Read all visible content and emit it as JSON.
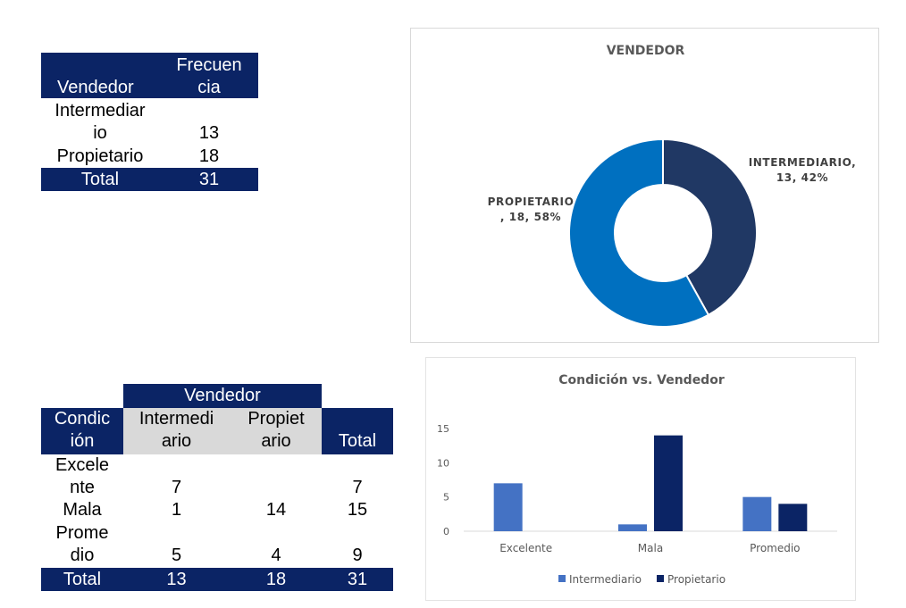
{
  "table1": {
    "headers": [
      "Vendedor",
      "Frecuen\ncia"
    ],
    "rows": [
      {
        "label": "Intermediar\nio",
        "value": "13"
      },
      {
        "label": "Propietario",
        "value": "18"
      }
    ],
    "total": {
      "label": "Total",
      "value": "31"
    }
  },
  "table2": {
    "group_header": "Vendedor",
    "headers": [
      "Condic\nión",
      "Intermedi\nario",
      "Propiet\nario",
      "Total"
    ],
    "rows": [
      {
        "label": "Excele\nnte",
        "intermediario": "7",
        "propietario": "",
        "total": "7"
      },
      {
        "label": "Mala",
        "intermediario": "1",
        "propietario": "14",
        "total": "15"
      },
      {
        "label": "Prome\ndio",
        "intermediario": "5",
        "propietario": "4",
        "total": "9"
      }
    ],
    "total": {
      "label": "Total",
      "intermediario": "13",
      "propietario": "18",
      "total": "31"
    }
  },
  "chart_data": [
    {
      "type": "pie",
      "donut": true,
      "title": "VENDEDOR",
      "categories": [
        "INTERMEDIARIO",
        "PROPIETARIO"
      ],
      "values": [
        13,
        18
      ],
      "percents": [
        "42%",
        "58%"
      ],
      "labels": [
        "INTERMEDIARIO,\n13, 42%",
        "PROPIETARIO\n, 18, 58%"
      ],
      "colors": [
        "#203864",
        "#0070c0"
      ]
    },
    {
      "type": "bar",
      "title": "Condición vs. Vendedor",
      "categories": [
        "Excelente",
        "Mala",
        "Promedio"
      ],
      "series": [
        {
          "name": "Intermediario",
          "values": [
            7,
            1,
            5
          ],
          "color": "#4472c4"
        },
        {
          "name": "Propietario",
          "values": [
            0,
            14,
            4
          ],
          "color": "#0b2465"
        }
      ],
      "ylim": [
        0,
        15
      ],
      "yticks": [
        "0",
        "5",
        "10",
        "15"
      ],
      "legend": "bottom",
      "grid": false
    }
  ]
}
